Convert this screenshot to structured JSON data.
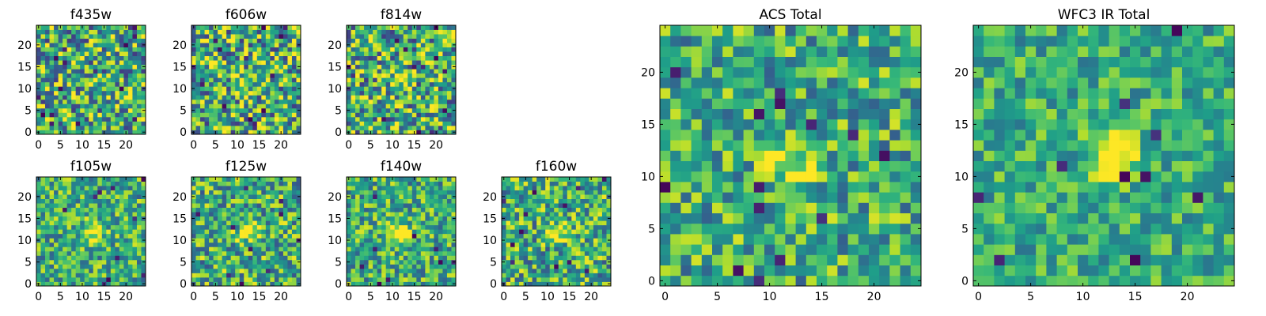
{
  "chart_data": [
    {
      "type": "heatmap",
      "title": "f435w",
      "image_size": 25,
      "xticks": [
        0,
        5,
        10,
        15,
        20
      ],
      "yticks": [
        0,
        5,
        10,
        15,
        20
      ],
      "colormap": "viridis",
      "noise": 0.55,
      "source_strength": 0.05,
      "center": [
        12,
        11
      ],
      "seed": 11,
      "dark_px": 16
    },
    {
      "type": "heatmap",
      "title": "f606w",
      "image_size": 25,
      "xticks": [
        0,
        5,
        10,
        15,
        20
      ],
      "yticks": [
        0,
        5,
        10,
        15,
        20
      ],
      "colormap": "viridis",
      "noise": 0.55,
      "source_strength": 0.3,
      "center": [
        12,
        11
      ],
      "seed": 23,
      "dark_px": 14
    },
    {
      "type": "heatmap",
      "title": "f814w",
      "image_size": 25,
      "xticks": [
        0,
        5,
        10,
        15,
        20
      ],
      "yticks": [
        0,
        5,
        10,
        15,
        20
      ],
      "colormap": "viridis",
      "noise": 0.55,
      "source_strength": 0.3,
      "center": [
        12,
        11
      ],
      "seed": 37,
      "dark_px": 14
    },
    {
      "type": "heatmap",
      "title": "f105w",
      "image_size": 25,
      "xticks": [
        0,
        5,
        10,
        15,
        20
      ],
      "yticks": [
        0,
        5,
        10,
        15,
        20
      ],
      "colormap": "viridis",
      "noise": 0.4,
      "source_strength": 0.45,
      "center": [
        13,
        12
      ],
      "seed": 41,
      "dark_px": 10
    },
    {
      "type": "heatmap",
      "title": "f125w",
      "image_size": 25,
      "xticks": [
        0,
        5,
        10,
        15,
        20
      ],
      "yticks": [
        0,
        5,
        10,
        15,
        20
      ],
      "colormap": "viridis",
      "noise": 0.45,
      "source_strength": 0.45,
      "center": [
        13,
        12
      ],
      "seed": 53,
      "dark_px": 10
    },
    {
      "type": "heatmap",
      "title": "f140w",
      "image_size": 25,
      "xticks": [
        0,
        5,
        10,
        15,
        20
      ],
      "yticks": [
        0,
        5,
        10,
        15,
        20
      ],
      "colormap": "viridis",
      "noise": 0.4,
      "source_strength": 0.45,
      "center": [
        12,
        12
      ],
      "seed": 67,
      "dark_px": 10
    },
    {
      "type": "heatmap",
      "title": "f160w",
      "image_size": 25,
      "xticks": [
        0,
        5,
        10,
        15,
        20
      ],
      "yticks": [
        0,
        5,
        10,
        15,
        20
      ],
      "colormap": "viridis",
      "noise": 0.45,
      "source_strength": 0.5,
      "center": [
        13,
        12
      ],
      "seed": 79,
      "dark_px": 12
    },
    {
      "type": "heatmap",
      "title": "ACS Total",
      "image_size": 25,
      "xticks": [
        0,
        5,
        10,
        15,
        20
      ],
      "yticks": [
        0,
        5,
        10,
        15,
        20
      ],
      "colormap": "viridis",
      "noise": 0.4,
      "source_strength": 0.35,
      "center": [
        12,
        11
      ],
      "seed": 97,
      "dark_px": 14
    },
    {
      "type": "heatmap",
      "title": "WFC3 IR Total",
      "image_size": 25,
      "xticks": [
        0,
        5,
        10,
        15,
        20
      ],
      "yticks": [
        0,
        5,
        10,
        15,
        20
      ],
      "colormap": "viridis",
      "noise": 0.3,
      "source_strength": 0.6,
      "center": [
        13,
        12
      ],
      "seed": 113,
      "dark_px": 10
    }
  ]
}
